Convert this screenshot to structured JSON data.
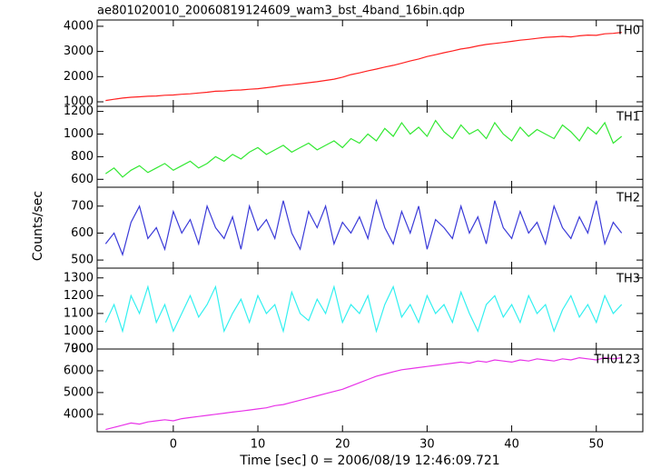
{
  "chart_data": [
    {
      "type": "line",
      "title": "ae801020010_20060819124609_wam3_bst_4band_16bin.qdp",
      "x": [
        -8,
        -7,
        -6,
        -5,
        -4,
        -3,
        -2,
        -1,
        0,
        1,
        2,
        3,
        4,
        5,
        6,
        7,
        8,
        9,
        10,
        11,
        12,
        13,
        14,
        15,
        16,
        17,
        18,
        19,
        20,
        21,
        22,
        23,
        24,
        25,
        26,
        27,
        28,
        29,
        30,
        31,
        32,
        33,
        34,
        35,
        36,
        37,
        38,
        39,
        40,
        41,
        42,
        43,
        44,
        45,
        46,
        47,
        48,
        49,
        50,
        51,
        52,
        53
      ],
      "xlim": [
        -9,
        55.5
      ],
      "ylim": [
        820,
        4250
      ],
      "yticks": [
        1000,
        2000,
        3000,
        4000
      ],
      "series": [
        {
          "name": "TH0",
          "color": "#ff2020",
          "values": [
            1050,
            1100,
            1150,
            1180,
            1200,
            1220,
            1230,
            1260,
            1270,
            1300,
            1320,
            1350,
            1380,
            1420,
            1430,
            1460,
            1470,
            1500,
            1520,
            1560,
            1600,
            1650,
            1680,
            1720,
            1760,
            1800,
            1850,
            1900,
            1980,
            2080,
            2150,
            2230,
            2300,
            2380,
            2450,
            2530,
            2620,
            2700,
            2800,
            2870,
            2950,
            3020,
            3100,
            3150,
            3220,
            3280,
            3320,
            3360,
            3400,
            3450,
            3480,
            3520,
            3560,
            3580,
            3600,
            3580,
            3620,
            3650,
            3640,
            3700,
            3720,
            3760
          ]
        }
      ]
    },
    {
      "type": "line",
      "x": [
        -8,
        -7,
        -6,
        -5,
        -4,
        -3,
        -2,
        -1,
        0,
        1,
        2,
        3,
        4,
        5,
        6,
        7,
        8,
        9,
        10,
        11,
        12,
        13,
        14,
        15,
        16,
        17,
        18,
        19,
        20,
        21,
        22,
        23,
        24,
        25,
        26,
        27,
        28,
        29,
        30,
        31,
        32,
        33,
        34,
        35,
        36,
        37,
        38,
        39,
        40,
        41,
        42,
        43,
        44,
        45,
        46,
        47,
        48,
        49,
        50,
        51,
        52,
        53
      ],
      "xlim": [
        -9,
        55.5
      ],
      "ylim": [
        530,
        1245
      ],
      "yticks": [
        600,
        800,
        1000,
        1200
      ],
      "series": [
        {
          "name": "TH1",
          "color": "#33e833",
          "values": [
            650,
            700,
            620,
            680,
            720,
            660,
            700,
            740,
            680,
            720,
            760,
            700,
            740,
            800,
            760,
            820,
            780,
            840,
            880,
            820,
            860,
            900,
            840,
            880,
            920,
            860,
            900,
            940,
            880,
            960,
            920,
            1000,
            940,
            1050,
            980,
            1100,
            1000,
            1060,
            980,
            1120,
            1020,
            960,
            1080,
            1000,
            1040,
            960,
            1100,
            1000,
            940,
            1060,
            980,
            1040,
            1000,
            960,
            1080,
            1020,
            940,
            1060,
            1000,
            1100,
            920,
            980
          ]
        }
      ]
    },
    {
      "type": "line",
      "ylabel": "Counts/sec",
      "x": [
        -8,
        -7,
        -6,
        -5,
        -4,
        -3,
        -2,
        -1,
        0,
        1,
        2,
        3,
        4,
        5,
        6,
        7,
        8,
        9,
        10,
        11,
        12,
        13,
        14,
        15,
        16,
        17,
        18,
        19,
        20,
        21,
        22,
        23,
        24,
        25,
        26,
        27,
        28,
        29,
        30,
        31,
        32,
        33,
        34,
        35,
        36,
        37,
        38,
        39,
        40,
        41,
        42,
        43,
        44,
        45,
        46,
        47,
        48,
        49,
        50,
        51,
        52,
        53
      ],
      "xlim": [
        -9,
        55.5
      ],
      "ylim": [
        470,
        770
      ],
      "yticks": [
        500,
        600,
        700
      ],
      "series": [
        {
          "name": "TH2",
          "color": "#3a3ad8",
          "values": [
            560,
            600,
            520,
            640,
            700,
            580,
            620,
            540,
            680,
            600,
            650,
            560,
            700,
            620,
            580,
            660,
            540,
            700,
            610,
            650,
            580,
            720,
            600,
            540,
            680,
            620,
            700,
            560,
            640,
            600,
            660,
            580,
            720,
            620,
            560,
            680,
            600,
            700,
            540,
            650,
            620,
            580,
            700,
            600,
            660,
            560,
            720,
            620,
            580,
            680,
            600,
            640,
            560,
            700,
            620,
            580,
            660,
            600,
            720,
            560,
            640,
            600
          ]
        }
      ]
    },
    {
      "type": "line",
      "x": [
        -8,
        -7,
        -6,
        -5,
        -4,
        -3,
        -2,
        -1,
        0,
        1,
        2,
        3,
        4,
        5,
        6,
        7,
        8,
        9,
        10,
        11,
        12,
        13,
        14,
        15,
        16,
        17,
        18,
        19,
        20,
        21,
        22,
        23,
        24,
        25,
        26,
        27,
        28,
        29,
        30,
        31,
        32,
        33,
        34,
        35,
        36,
        37,
        38,
        39,
        40,
        41,
        42,
        43,
        44,
        45,
        46,
        47,
        48,
        49,
        50,
        51,
        52,
        53
      ],
      "xlim": [
        -9,
        55.5
      ],
      "ylim": [
        900,
        1355
      ],
      "yticks": [
        900,
        1000,
        1100,
        1200,
        1300
      ],
      "series": [
        {
          "name": "TH3",
          "color": "#33f0f0",
          "values": [
            1050,
            1150,
            1000,
            1200,
            1100,
            1250,
            1050,
            1150,
            1000,
            1100,
            1200,
            1080,
            1150,
            1250,
            1000,
            1100,
            1180,
            1050,
            1200,
            1100,
            1150,
            1000,
            1220,
            1100,
            1060,
            1180,
            1100,
            1250,
            1050,
            1150,
            1100,
            1200,
            1000,
            1150,
            1250,
            1080,
            1150,
            1050,
            1200,
            1100,
            1150,
            1050,
            1220,
            1100,
            1000,
            1150,
            1200,
            1080,
            1150,
            1050,
            1200,
            1100,
            1150,
            1000,
            1120,
            1200,
            1080,
            1150,
            1050,
            1200,
            1100,
            1150
          ]
        }
      ]
    },
    {
      "type": "line",
      "xlabel": "Time [sec] 0 = 2006/08/19 12:46:09.721",
      "x": [
        -8,
        -7,
        -6,
        -5,
        -4,
        -3,
        -2,
        -1,
        0,
        1,
        2,
        3,
        4,
        5,
        6,
        7,
        8,
        9,
        10,
        11,
        12,
        13,
        14,
        15,
        16,
        17,
        18,
        19,
        20,
        21,
        22,
        23,
        24,
        25,
        26,
        27,
        28,
        29,
        30,
        31,
        32,
        33,
        34,
        35,
        36,
        37,
        38,
        39,
        40,
        41,
        42,
        43,
        44,
        45,
        46,
        47,
        48,
        49,
        50,
        51,
        52,
        53
      ],
      "xlim": [
        -9,
        55.5
      ],
      "xticks": [
        0,
        10,
        20,
        30,
        40,
        50
      ],
      "ylim": [
        3200,
        7000
      ],
      "yticks": [
        4000,
        5000,
        6000,
        7000
      ],
      "series": [
        {
          "name": "TH0123",
          "color": "#e833e8",
          "values": [
            3300,
            3400,
            3500,
            3600,
            3550,
            3650,
            3700,
            3750,
            3700,
            3800,
            3850,
            3900,
            3950,
            4000,
            4050,
            4100,
            4150,
            4200,
            4250,
            4300,
            4400,
            4450,
            4550,
            4650,
            4750,
            4850,
            4950,
            5050,
            5150,
            5300,
            5450,
            5600,
            5750,
            5850,
            5950,
            6050,
            6100,
            6150,
            6200,
            6250,
            6300,
            6350,
            6400,
            6350,
            6450,
            6400,
            6500,
            6450,
            6400,
            6500,
            6450,
            6550,
            6500,
            6450,
            6550,
            6500,
            6600,
            6550,
            6500,
            6600,
            6550,
            6600
          ]
        }
      ]
    }
  ]
}
